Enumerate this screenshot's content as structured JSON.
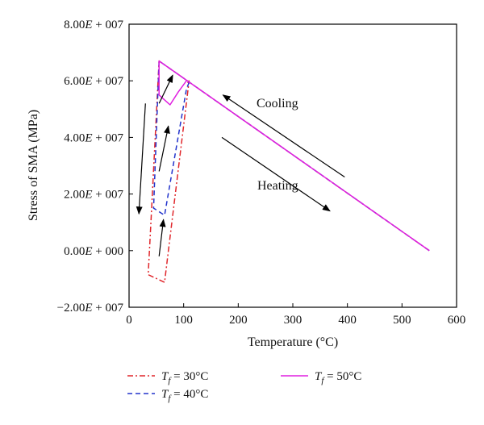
{
  "chart_data": {
    "type": "line",
    "xlabel": "Temperature (°C)",
    "ylabel": "Stress of SMA (MPa)",
    "xlim": [
      0,
      600
    ],
    "ylim": [
      -20000000,
      80000000
    ],
    "x_ticks": [
      "0",
      "100",
      "200",
      "300",
      "400",
      "500",
      "600"
    ],
    "y_ticks": [
      "−2.00E + 007",
      "0.00E + 000",
      "2.00E + 007",
      "4.00E + 007",
      "6.00E + 007",
      "8.00E + 007"
    ],
    "grid": false,
    "legend_position": "bottom",
    "annotations": [
      "Cooling",
      "Heating"
    ],
    "series": [
      {
        "name": "Tf = 30°C",
        "color": "#e0262b",
        "dash": "dashdot",
        "points": [
          [
            550,
            0
          ],
          [
            55,
            67000000
          ],
          [
            40,
            10000000
          ],
          [
            35,
            -8500000
          ],
          [
            65,
            -11200000
          ],
          [
            110,
            60000000
          ],
          [
            105,
            58500000
          ]
        ]
      },
      {
        "name": "Tf = 40°C",
        "color": "#2233cc",
        "dash": "dashed",
        "points": [
          [
            550,
            0
          ],
          [
            55,
            67000000
          ],
          [
            45,
            15000000
          ],
          [
            65,
            12500000
          ],
          [
            105,
            57000000
          ],
          [
            110,
            59500000
          ]
        ]
      },
      {
        "name": "Tf = 50°C",
        "color": "#e020e0",
        "dash": "solid",
        "points": [
          [
            550,
            0
          ],
          [
            55,
            67000000
          ],
          [
            55,
            55000000
          ],
          [
            75,
            51500000
          ],
          [
            90,
            56000000
          ],
          [
            105,
            60000000
          ]
        ]
      }
    ],
    "legend": {
      "s30_prefix": "T",
      "s30_sub": "f",
      "s30_rest": " = 30°C",
      "s40_prefix": "T",
      "s40_sub": "f",
      "s40_rest": " = 40°C",
      "s50_prefix": "T",
      "s50_sub": "f",
      "s50_rest": " = 50°C"
    }
  }
}
